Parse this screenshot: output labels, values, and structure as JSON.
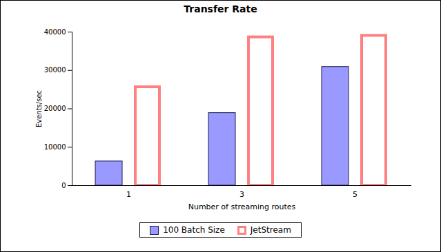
{
  "chart_data": {
    "type": "bar",
    "title": "Transfer Rate",
    "x_label": "Number of streaming routes",
    "y_label": "Events/sec",
    "categories": [
      "1",
      "3",
      "5"
    ],
    "series": [
      {
        "name": "100 Batch Size",
        "color": "#9999ff",
        "values": [
          6300,
          18900,
          30900
        ]
      },
      {
        "name": "JetStream",
        "color": "#ff8080",
        "values": [
          26000,
          39000,
          39400
        ]
      }
    ],
    "ylim": [
      0,
      40000
    ],
    "yticks": [
      0,
      10000,
      20000,
      30000,
      40000
    ],
    "grid": false,
    "legend": "bottom"
  }
}
